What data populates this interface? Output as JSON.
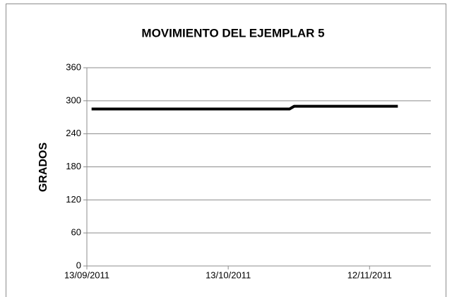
{
  "chart_data": {
    "type": "line",
    "title": "MOVIMIENTO DEL EJEMPLAR 5",
    "y_label": "GRADOS",
    "x": [
      "14/09/2011",
      "26/10/2011",
      "27/10/2011",
      "18/11/2011"
    ],
    "series": [
      {
        "color": "#000000",
        "values": [
          285,
          285,
          290,
          290
        ]
      }
    ],
    "xlim": [
      "13/09/2011",
      "25/11/2011"
    ],
    "xticks": [
      "13/09/2011",
      "13/10/2011",
      "12/11/2011"
    ],
    "ylim": [
      0,
      360
    ],
    "yticks": [
      0,
      60,
      120,
      180,
      240,
      300,
      360
    ],
    "grid": true
  }
}
